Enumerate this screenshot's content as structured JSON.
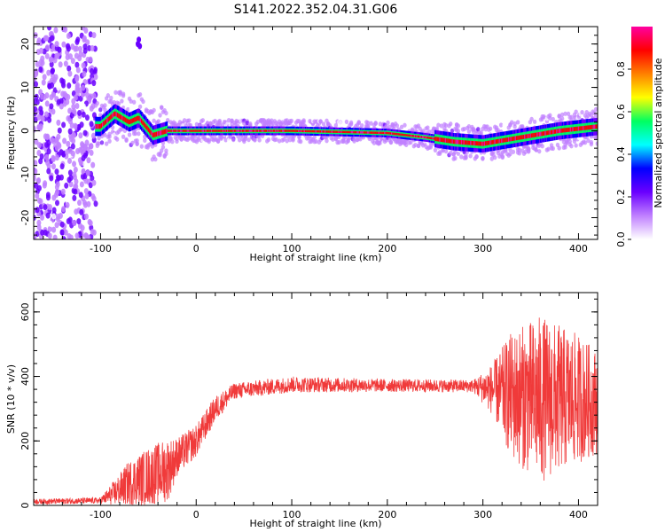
{
  "figure_title": "S141.2022.352.04.31.G06",
  "chart_data": [
    {
      "type": "heatmap",
      "ylabel": "Frequency (Hz)",
      "xlabel": "Height of straight line (km)",
      "xlim": [
        -170,
        420
      ],
      "ylim": [
        -25,
        24
      ],
      "x_ticks": [
        -100,
        0,
        100,
        200,
        300,
        400
      ],
      "x_tick_labels": [
        "-100",
        "0",
        "100",
        "200",
        "300",
        "400"
      ],
      "y_ticks": [
        -20,
        -10,
        0,
        10,
        20
      ],
      "y_tick_labels": [
        "-20",
        "-10",
        "0",
        "10",
        "20"
      ],
      "colorbar": {
        "label": "Normalized spectral amplitude",
        "range": [
          0,
          1
        ],
        "ticks": [
          0.0,
          0.2,
          0.4,
          0.6,
          0.8
        ],
        "tick_labels": [
          "0.0",
          "0.2",
          "0.4",
          "0.6",
          "0.8"
        ],
        "colors": [
          "#ffffff",
          "#c080ff",
          "#6a00ff",
          "#0000ff",
          "#00ffff",
          "#00ff60",
          "#ffff00",
          "#ff8000",
          "#ff0000",
          "#ff00a0"
        ]
      },
      "ridge": [
        {
          "x": -100,
          "y": 1
        },
        {
          "x": -85,
          "y": 4
        },
        {
          "x": -70,
          "y": 2
        },
        {
          "x": -60,
          "y": 3
        },
        {
          "x": -45,
          "y": -1
        },
        {
          "x": -30,
          "y": 0
        },
        {
          "x": 0,
          "y": 0
        },
        {
          "x": 100,
          "y": 0
        },
        {
          "x": 200,
          "y": -0.5
        },
        {
          "x": 240,
          "y": -1.5
        },
        {
          "x": 270,
          "y": -2.5
        },
        {
          "x": 300,
          "y": -3
        },
        {
          "x": 340,
          "y": -1.5
        },
        {
          "x": 380,
          "y": 0
        },
        {
          "x": 420,
          "y": 1
        }
      ],
      "noise_region_x": [
        -170,
        -105
      ],
      "grid": false
    },
    {
      "type": "line",
      "ylabel": "SNR (10 * v/v)",
      "xlabel": "Height of straight line (km)",
      "xlim": [
        -170,
        420
      ],
      "ylim": [
        0,
        660
      ],
      "x_ticks": [
        -100,
        0,
        100,
        200,
        300,
        400
      ],
      "x_tick_labels": [
        "-100",
        "0",
        "100",
        "200",
        "300",
        "400"
      ],
      "y_ticks": [
        0,
        200,
        400,
        600
      ],
      "y_tick_labels": [
        "0",
        "200",
        "400",
        "600"
      ],
      "color": "#f03a3a",
      "envelope": [
        {
          "x": -170,
          "mean": 12,
          "amp": 8
        },
        {
          "x": -100,
          "mean": 15,
          "amp": 10
        },
        {
          "x": -85,
          "mean": 40,
          "amp": 40
        },
        {
          "x": -70,
          "mean": 70,
          "amp": 70
        },
        {
          "x": -50,
          "mean": 90,
          "amp": 90
        },
        {
          "x": -30,
          "mean": 110,
          "amp": 100
        },
        {
          "x": -20,
          "mean": 150,
          "amp": 60
        },
        {
          "x": 0,
          "mean": 200,
          "amp": 50
        },
        {
          "x": 20,
          "mean": 300,
          "amp": 40
        },
        {
          "x": 40,
          "mean": 355,
          "amp": 25
        },
        {
          "x": 100,
          "mean": 375,
          "amp": 25
        },
        {
          "x": 200,
          "mean": 372,
          "amp": 20
        },
        {
          "x": 290,
          "mean": 370,
          "amp": 20
        },
        {
          "x": 310,
          "mean": 360,
          "amp": 80
        },
        {
          "x": 330,
          "mean": 340,
          "amp": 200
        },
        {
          "x": 360,
          "mean": 330,
          "amp": 260
        },
        {
          "x": 400,
          "mean": 330,
          "amp": 200
        },
        {
          "x": 420,
          "mean": 320,
          "amp": 160
        }
      ],
      "grid": false
    }
  ]
}
